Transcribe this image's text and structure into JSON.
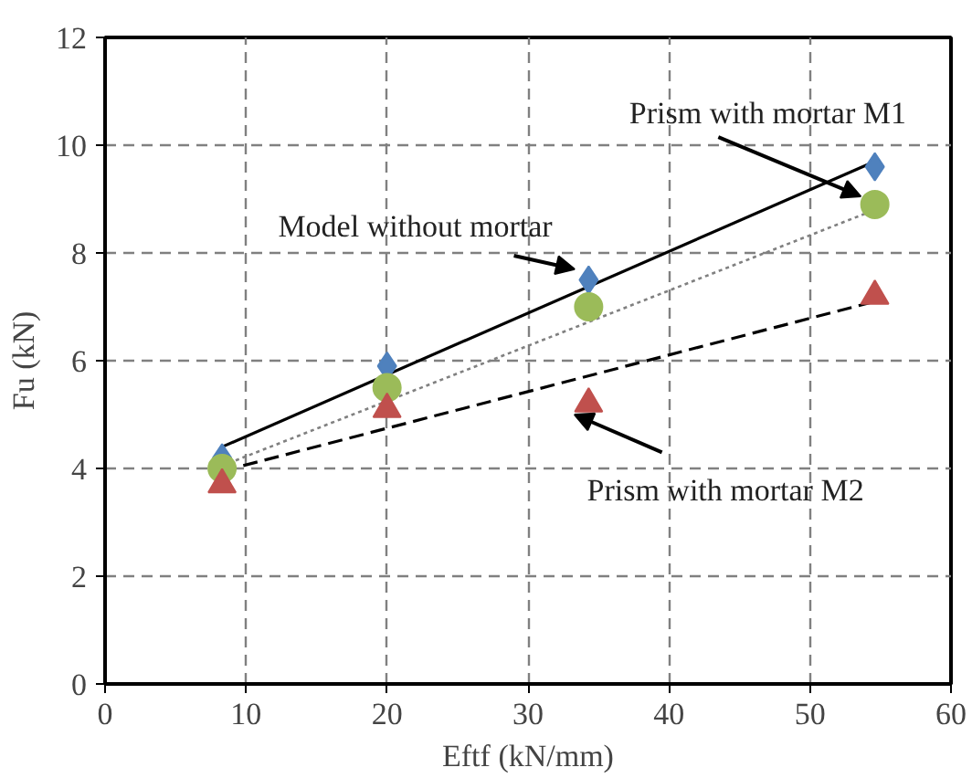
{
  "chart_data": {
    "type": "scatter",
    "xlabel": "Eftf (kN/mm)",
    "ylabel": "Fu (kN)",
    "xlim": [
      0,
      60
    ],
    "xticks": [
      0,
      10,
      20,
      30,
      40,
      50,
      60
    ],
    "ylim": [
      0,
      12
    ],
    "yticks": [
      0,
      2,
      4,
      6,
      8,
      10,
      12
    ],
    "grid": true,
    "series": [
      {
        "name": "Model without mortar",
        "color": "#4f81bd",
        "marker": "diamond",
        "x": [
          8.3,
          20,
          34.3,
          54.6
        ],
        "values": [
          4.2,
          5.9,
          7.5,
          9.6
        ]
      },
      {
        "name": "Prism with mortar M1",
        "color": "#9bbb59",
        "marker": "circle",
        "x": [
          8.3,
          20,
          34.3,
          54.6
        ],
        "values": [
          4.0,
          5.5,
          7.0,
          8.9
        ]
      },
      {
        "name": "Prism with mortar M2",
        "color": "#c0504d",
        "marker": "triangle",
        "x": [
          8.3,
          20,
          34.3,
          54.6
        ],
        "values": [
          3.7,
          5.1,
          5.2,
          7.2
        ]
      },
      {
        "type": "line",
        "color": "#000000",
        "line_style": "solid",
        "x": [
          8.3,
          54.6
        ],
        "values": [
          4.4,
          9.7
        ]
      },
      {
        "type": "line",
        "color": "#808080",
        "line_style": "dotted",
        "x": [
          8.3,
          54.6
        ],
        "values": [
          4.05,
          8.8
        ]
      },
      {
        "type": "line",
        "color": "#000000",
        "line_style": "dashed",
        "x": [
          8.3,
          54.6
        ],
        "values": [
          3.95,
          7.1
        ]
      }
    ]
  }
}
